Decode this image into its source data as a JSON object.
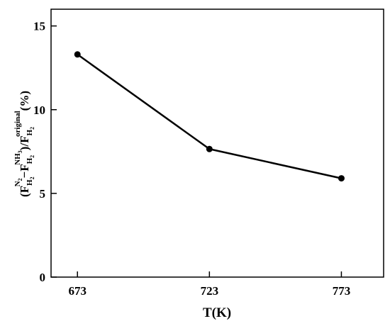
{
  "chart_data": {
    "type": "line",
    "x": [
      673,
      723,
      773
    ],
    "categories": [
      "673",
      "723",
      "773"
    ],
    "series": [
      {
        "values": [
          13.3,
          7.65,
          5.9
        ]
      }
    ],
    "xlabel": "T(K)",
    "ylabel": "(F_H2^N2 − F_H2^NH3)/F_H2^original (%)",
    "ylabel_parts": {
      "open": "(F",
      "sub1": "H",
      "sub1b": "2",
      "sup1": "N",
      "sup1b": "2",
      "minus": "−F",
      "sub2": "H",
      "sub2b": "2",
      "sup2": "NH",
      "sup2b": "3",
      "slash": ")/F",
      "sub3": "H",
      "sub3b": "2",
      "sup3": "original",
      "unit": "(%)"
    },
    "yticks": [
      "0",
      "5",
      "10",
      "15"
    ],
    "ytick_values": [
      0,
      5,
      10,
      15
    ],
    "ylim": [
      0,
      16
    ],
    "xlim": [
      663,
      789
    ],
    "grid": false,
    "colors": {
      "line": "#000000",
      "marker": "#000000"
    }
  }
}
